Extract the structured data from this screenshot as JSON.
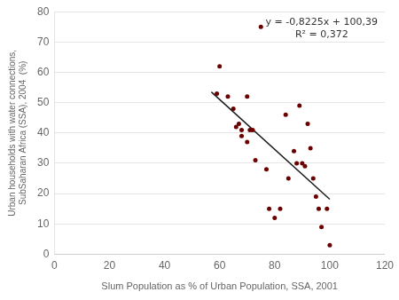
{
  "chart_data": {
    "type": "scatter",
    "xlabel": "Slum Population as % of Urban Population, SSA, 2001",
    "ylabel": [
      "Urban households with water connections,",
      "SubSaharan Africa (SSA), 2004  (%)"
    ],
    "annotations": [
      "y = -0,8225x + 100,39",
      "R² = 0,372"
    ],
    "series": [
      {
        "type": "scatter",
        "color": "#6B0000",
        "x": [
          59,
          60,
          63,
          65,
          66,
          67,
          68,
          68,
          70,
          70,
          71,
          72,
          73,
          75,
          77,
          78,
          80,
          82,
          84,
          85,
          87,
          88,
          89,
          90,
          91,
          92,
          93,
          94,
          95,
          96,
          97,
          99,
          100
        ],
        "values": [
          53,
          62,
          52,
          48,
          42,
          43,
          41,
          39,
          52,
          37,
          41,
          41,
          31,
          75,
          28,
          15,
          12,
          15,
          46,
          25,
          34,
          30,
          49,
          30,
          29,
          43,
          35,
          25,
          19,
          15,
          9,
          15,
          3
        ]
      },
      {
        "type": "line",
        "color": "#1a1a1a",
        "x": [
          57,
          100
        ],
        "values": [
          53.5075,
          18.14
        ]
      }
    ],
    "xlim": [
      0,
      120
    ],
    "xticks": [
      0,
      20,
      40,
      60,
      80,
      100,
      120
    ],
    "ylim": [
      0,
      80
    ],
    "yticks": [
      0,
      10,
      20,
      30,
      40,
      50,
      60,
      70,
      80
    ],
    "grid": "y"
  }
}
